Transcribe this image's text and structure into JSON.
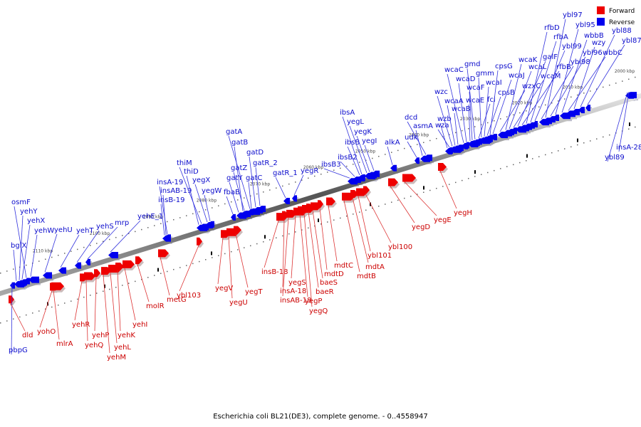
{
  "caption": "Escherichia coli BL21(DE3), complete genome. - 0..4558947",
  "legend": [
    {
      "label": "Forward",
      "color": "#ee0000"
    },
    {
      "label": "Reverse",
      "color": "#0000ee"
    }
  ],
  "ticks": [
    {
      "label": "2110 kbp"
    },
    {
      "label": "2100 kbp"
    },
    {
      "label": "2090 kbp"
    },
    {
      "label": "2080 kbp"
    },
    {
      "label": "2070 kbp"
    },
    {
      "label": "2060 kbp"
    },
    {
      "label": "2050 kbp"
    },
    {
      "label": "2040 kbp"
    },
    {
      "label": "2030 kbp"
    },
    {
      "label": "2020 kbp"
    },
    {
      "label": "2010 kbp"
    },
    {
      "label": "2000 kbp"
    }
  ],
  "reverse_genes": [
    "pbpG",
    "bglX",
    "yehY",
    "yehX",
    "osmF",
    "yehW",
    "yehU",
    "yehT",
    "yehS",
    "mrp",
    "yehE_1",
    "insB-19",
    "insAB-19",
    "insA-19",
    "thiD",
    "thiM",
    "yegX",
    "yegW",
    "fbaB",
    "gatY",
    "gatZ",
    "gatB",
    "gatA",
    "gatC",
    "gatD",
    "gatR_2",
    "gatR_1",
    "yegR",
    "ibsB3",
    "ibsB2",
    "ibsB",
    "ibsA",
    "yegL",
    "yegK",
    "yegI",
    "alkA",
    "udk",
    "asmA",
    "dcd",
    "wzb",
    "wza",
    "wzc",
    "wcaA",
    "wcaB",
    "wcaC",
    "wcaD",
    "wcaE",
    "wcaF",
    "gmd",
    "fcl",
    "gmm",
    "wcaI",
    "cpsB",
    "wcaJ",
    "cpsG",
    "wzxC",
    "wcaK",
    "wcaL",
    "wcaM",
    "galF",
    "rfbB",
    "rfbD",
    "rfbA",
    "ybl99",
    "ybl98",
    "ybl97",
    "ybl96",
    "ybl95",
    "wbbB",
    "wbbC",
    "wzy",
    "ybl88",
    "ybl87",
    "insA-28",
    "ybl89"
  ],
  "forward_genes": [
    "dld",
    "yohO",
    "mlrA",
    "yehR",
    "yehQ",
    "yehP",
    "yehM",
    "yehL",
    "yehK",
    "yehI",
    "molR",
    "metG",
    "ybl103",
    "yegV",
    "yegU",
    "yegT",
    "insB-18",
    "insA-18",
    "insAB-18",
    "yegS",
    "yegP",
    "yegQ",
    "baeR",
    "baeS",
    "mdtD",
    "mdtC",
    "mdtB",
    "mdtA",
    "ybl101",
    "ybl100",
    "yegD",
    "yegE",
    "yegH"
  ]
}
